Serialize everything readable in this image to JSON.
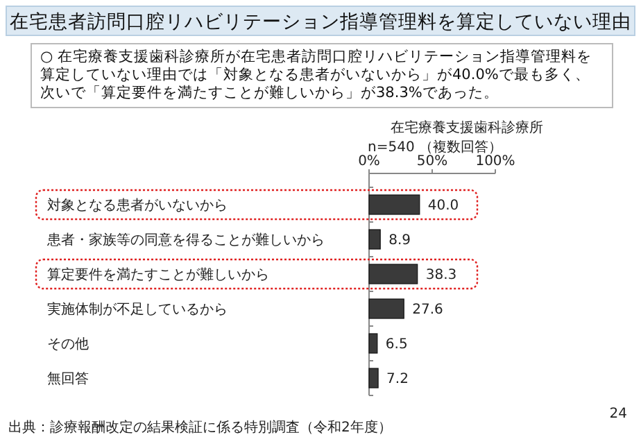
{
  "chart_data": {
    "type": "bar",
    "orientation": "horizontal",
    "title": "在宅患者訪問口腔リハビリテーション指導管理料を算定していない理由",
    "subtitle": "在宅療養支援歯科診療所",
    "annotations": [
      "○ 在宅療養支援歯科診療所が在宅患者訪問口腔リハビリテーション指導管理料を算定していない理由では「対象となる患者がいないから」が40.0%で最も多く、次いで「算定要件を満たすことが難しいから」が38.3%であった。",
      "n=540 （複数回答）",
      "出典：診療報酬改定の結果検証に係る特別調査（令和2年度）",
      "24"
    ],
    "categories": [
      "対象となる患者がいないから",
      "患者・家族等の同意を得ることが難しいから",
      "算定要件を満たすことが難しいから",
      "実施体制が不足しているから",
      "その他",
      "無回答"
    ],
    "values": [
      40.0,
      8.9,
      38.3,
      27.6,
      6.5,
      7.2
    ],
    "value_labels": [
      "40.0",
      "8.9",
      "38.3",
      "27.6",
      "6.5",
      "7.2"
    ],
    "color": "#3a3a3a",
    "xlim": [
      0,
      100
    ],
    "xticks": [
      {
        "value": 0,
        "label": "0%"
      },
      {
        "value": 50,
        "label": "50%"
      },
      {
        "value": 100,
        "label": "100%"
      }
    ]
  }
}
